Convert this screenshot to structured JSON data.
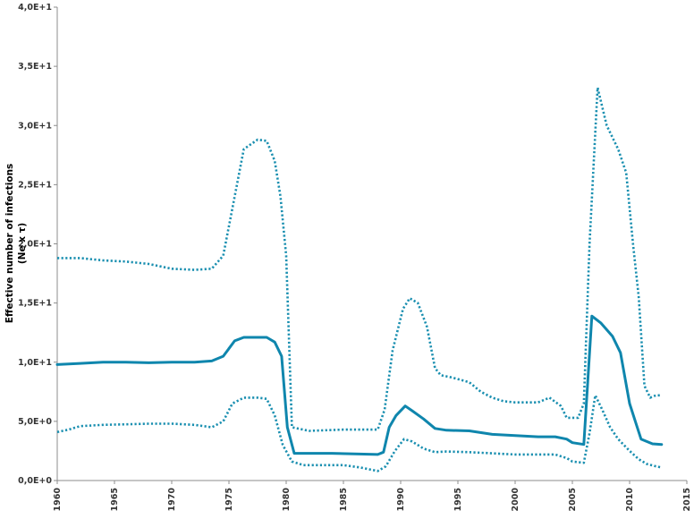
{
  "chart_data": {
    "type": "line",
    "title": "",
    "xlabel": "",
    "ylabel_lines": [
      "Effective number of infections",
      "(Ne x τ)"
    ],
    "xlim": [
      1960,
      2015
    ],
    "ylim": [
      0,
      40
    ],
    "x_ticks": [
      1960,
      1965,
      1970,
      1975,
      1980,
      1985,
      1990,
      1995,
      2000,
      2005,
      2010,
      2015
    ],
    "y_ticks": [
      0,
      5,
      10,
      15,
      20,
      25,
      30,
      35,
      40
    ],
    "y_tick_labels": [
      "0,0E+0",
      "5,0E+0",
      "1,0E+1",
      "1,5E+1",
      "2,0E+1",
      "2,5E+1",
      "3,0E+1",
      "3,5E+1",
      "4,0E+1"
    ],
    "grid": false,
    "legend": "none",
    "series": [
      {
        "role": "upper",
        "color": "#1a8fb0",
        "style": "dotted",
        "points": [
          [
            1960,
            18.8
          ],
          [
            1962,
            18.8
          ],
          [
            1964,
            18.6
          ],
          [
            1966,
            18.5
          ],
          [
            1968,
            18.3
          ],
          [
            1970,
            17.9
          ],
          [
            1972,
            17.8
          ],
          [
            1973.5,
            17.9
          ],
          [
            1974.5,
            19.0
          ],
          [
            1975.5,
            24.0
          ],
          [
            1976.3,
            28.0
          ],
          [
            1977.5,
            28.8
          ],
          [
            1978.3,
            28.7
          ],
          [
            1979,
            27.0
          ],
          [
            1979.5,
            24.0
          ],
          [
            1980,
            19.0
          ],
          [
            1980.5,
            4.5
          ],
          [
            1982,
            4.2
          ],
          [
            1985,
            4.3
          ],
          [
            1988,
            4.3
          ],
          [
            1988.6,
            6.0
          ],
          [
            1989.3,
            11.0
          ],
          [
            1990.2,
            14.5
          ],
          [
            1990.8,
            15.4
          ],
          [
            1991.5,
            15.0
          ],
          [
            1992.3,
            13.0
          ],
          [
            1993,
            9.5
          ],
          [
            1993.5,
            8.9
          ],
          [
            1994.5,
            8.7
          ],
          [
            1996,
            8.3
          ],
          [
            1997,
            7.5
          ],
          [
            1998,
            7.0
          ],
          [
            1999,
            6.7
          ],
          [
            2000,
            6.6
          ],
          [
            2002,
            6.6
          ],
          [
            2003,
            7.0
          ],
          [
            2004,
            6.3
          ],
          [
            2004.5,
            5.3
          ],
          [
            2005.5,
            5.3
          ],
          [
            2006,
            6.5
          ],
          [
            2006.5,
            20.0
          ],
          [
            2007.2,
            33.2
          ],
          [
            2008,
            30.0
          ],
          [
            2009,
            28.0
          ],
          [
            2009.7,
            26.0
          ],
          [
            2010.3,
            20.0
          ],
          [
            2010.8,
            15.5
          ],
          [
            2011.3,
            8.0
          ],
          [
            2011.8,
            7.0
          ],
          [
            2012.3,
            7.2
          ],
          [
            2012.8,
            7.2
          ]
        ]
      },
      {
        "role": "median",
        "color": "#0f86ad",
        "style": "solid",
        "points": [
          [
            1960,
            9.8
          ],
          [
            1962,
            9.9
          ],
          [
            1964,
            10.0
          ],
          [
            1966,
            10.0
          ],
          [
            1968,
            9.95
          ],
          [
            1970,
            10.0
          ],
          [
            1972,
            10.0
          ],
          [
            1973.5,
            10.1
          ],
          [
            1974.5,
            10.5
          ],
          [
            1975.5,
            11.8
          ],
          [
            1976.3,
            12.1
          ],
          [
            1977.5,
            12.1
          ],
          [
            1978.3,
            12.1
          ],
          [
            1979,
            11.7
          ],
          [
            1979.6,
            10.5
          ],
          [
            1980.1,
            4.5
          ],
          [
            1980.7,
            2.3
          ],
          [
            1982,
            2.3
          ],
          [
            1984,
            2.3
          ],
          [
            1986,
            2.25
          ],
          [
            1988,
            2.2
          ],
          [
            1988.5,
            2.4
          ],
          [
            1989,
            4.5
          ],
          [
            1989.6,
            5.5
          ],
          [
            1990.4,
            6.3
          ],
          [
            1991,
            5.9
          ],
          [
            1992,
            5.2
          ],
          [
            1993,
            4.4
          ],
          [
            1994,
            4.25
          ],
          [
            1996,
            4.2
          ],
          [
            1998,
            3.9
          ],
          [
            2000,
            3.8
          ],
          [
            2002,
            3.7
          ],
          [
            2003.5,
            3.7
          ],
          [
            2004.5,
            3.5
          ],
          [
            2005,
            3.2
          ],
          [
            2006,
            3.05
          ],
          [
            2006.7,
            13.9
          ],
          [
            2007.5,
            13.3
          ],
          [
            2008.5,
            12.2
          ],
          [
            2009.2,
            10.8
          ],
          [
            2010,
            6.5
          ],
          [
            2010.5,
            5.0
          ],
          [
            2011,
            3.5
          ],
          [
            2012,
            3.1
          ],
          [
            2012.8,
            3.05
          ]
        ]
      },
      {
        "role": "lower",
        "color": "#1a8fb0",
        "style": "dotted",
        "points": [
          [
            1960,
            4.1
          ],
          [
            1961,
            4.3
          ],
          [
            1962,
            4.6
          ],
          [
            1964,
            4.7
          ],
          [
            1966,
            4.75
          ],
          [
            1968,
            4.8
          ],
          [
            1970,
            4.8
          ],
          [
            1972,
            4.7
          ],
          [
            1973.5,
            4.5
          ],
          [
            1974.5,
            5.0
          ],
          [
            1975.3,
            6.5
          ],
          [
            1976.3,
            7.0
          ],
          [
            1977.5,
            7.0
          ],
          [
            1978.3,
            6.9
          ],
          [
            1979,
            5.5
          ],
          [
            1979.7,
            3.0
          ],
          [
            1980.5,
            1.6
          ],
          [
            1981.5,
            1.3
          ],
          [
            1985,
            1.3
          ],
          [
            1986.5,
            1.1
          ],
          [
            1988,
            0.8
          ],
          [
            1988.7,
            1.2
          ],
          [
            1989.5,
            2.5
          ],
          [
            1990.3,
            3.5
          ],
          [
            1991,
            3.3
          ],
          [
            1992,
            2.7
          ],
          [
            1993,
            2.4
          ],
          [
            1994,
            2.45
          ],
          [
            1996,
            2.4
          ],
          [
            1998,
            2.3
          ],
          [
            2000,
            2.2
          ],
          [
            2002,
            2.2
          ],
          [
            2003.5,
            2.2
          ],
          [
            2004.5,
            1.9
          ],
          [
            2005,
            1.6
          ],
          [
            2006,
            1.5
          ],
          [
            2006.5,
            4.0
          ],
          [
            2007,
            7.2
          ],
          [
            2007.6,
            6.0
          ],
          [
            2008.3,
            4.5
          ],
          [
            2009,
            3.5
          ],
          [
            2010,
            2.5
          ],
          [
            2010.8,
            1.8
          ],
          [
            2011.5,
            1.4
          ],
          [
            2012.3,
            1.2
          ],
          [
            2012.8,
            1.1
          ]
        ]
      }
    ]
  }
}
